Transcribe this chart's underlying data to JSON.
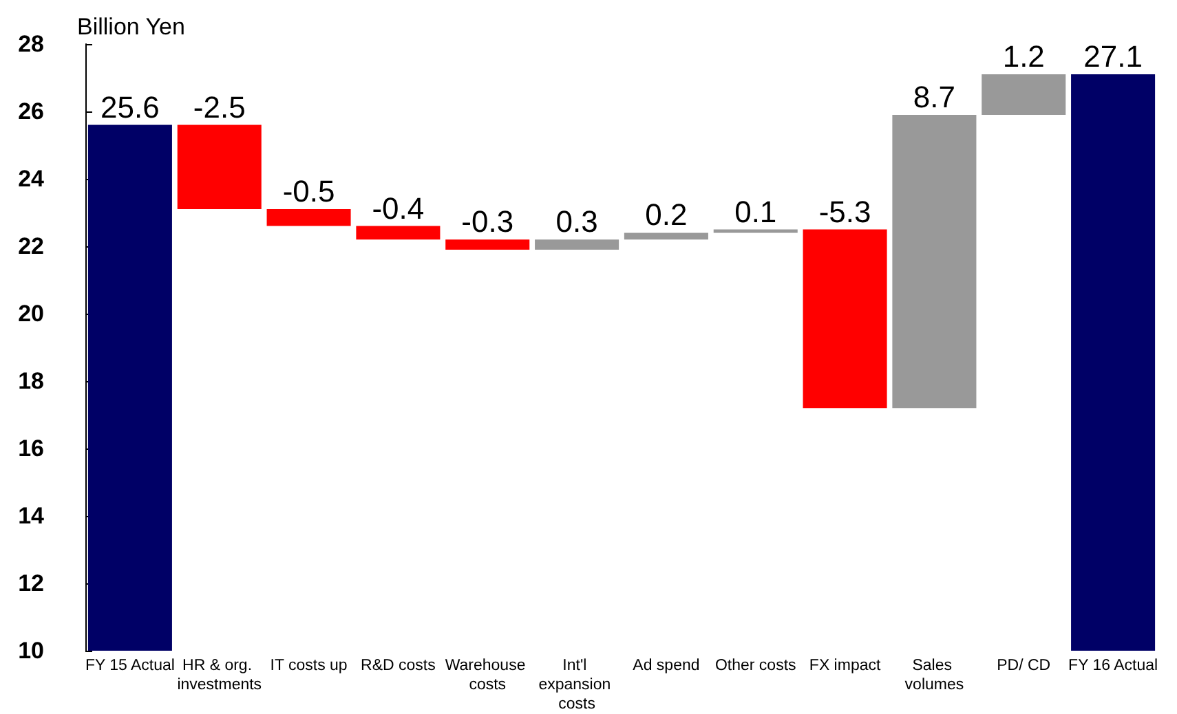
{
  "chart_data": {
    "type": "bar",
    "ylabel": "Billion Yen",
    "categories": [
      "FY 15 Actual",
      "HR & org. investments",
      "IT costs up",
      "R&D costs",
      "Warehouse costs",
      "Int'l expansion costs",
      "Ad spend",
      "Other costs",
      "FX impact",
      "Sales volumes",
      "PD/ CD",
      "FY 16 Actual"
    ],
    "values": [
      25.6,
      -2.5,
      -0.5,
      -0.4,
      -0.3,
      0.3,
      0.2,
      0.1,
      -5.3,
      8.7,
      1.2,
      27.1
    ],
    "base": [
      null,
      25.6,
      23.1,
      22.6,
      22.2,
      21.9,
      22.2,
      22.4,
      22.5,
      17.2,
      25.9,
      null
    ],
    "colors": [
      "#000066",
      "#ff0000",
      "#ff0000",
      "#ff0000",
      "#ff0000",
      "#999999",
      "#999999",
      "#999999",
      "#ff0000",
      "#999999",
      "#999999",
      "#000066"
    ],
    "ylim": [
      10,
      28
    ],
    "yticks": [
      10,
      12,
      14,
      16,
      18,
      20,
      22,
      24,
      26,
      28
    ],
    "data_labels": true
  }
}
